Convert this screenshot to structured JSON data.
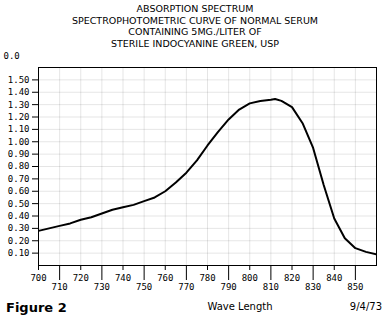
{
  "chart_data": {
    "type": "line",
    "title": "ABSORPTION SPECTRUM\nSPECTROPHOTOMETRIC CURVE OF NORMAL SERUM\nCONTAINING 5MG./LITER OF\nSTERILE INDOCYANINE GREEN, USP",
    "xlabel": "Wave Length",
    "ylabel": "0.0",
    "annotations": [
      "9/4/73",
      "Figure 2"
    ],
    "x": [
      700,
      705,
      710,
      715,
      720,
      725,
      730,
      735,
      740,
      745,
      750,
      755,
      760,
      765,
      770,
      775,
      780,
      785,
      790,
      795,
      800,
      805,
      810,
      812,
      815,
      820,
      825,
      830,
      835,
      840,
      845,
      850,
      855,
      860
    ],
    "values": [
      0.28,
      0.3,
      0.32,
      0.34,
      0.37,
      0.39,
      0.42,
      0.45,
      0.47,
      0.49,
      0.52,
      0.55,
      0.6,
      0.67,
      0.75,
      0.85,
      0.97,
      1.08,
      1.18,
      1.26,
      1.31,
      1.33,
      1.34,
      1.345,
      1.33,
      1.28,
      1.15,
      0.95,
      0.65,
      0.38,
      0.22,
      0.14,
      0.11,
      0.09
    ],
    "color": "#000000",
    "xlim": [
      700,
      860
    ],
    "xticks": [
      700,
      710,
      720,
      730,
      740,
      750,
      760,
      770,
      780,
      790,
      800,
      810,
      820,
      830,
      840,
      850
    ],
    "ylim": [
      0.0,
      1.6
    ],
    "yticks": [
      {
        "value": 0.1,
        "label": "0.10"
      },
      {
        "value": 0.2,
        "label": "0.20"
      },
      {
        "value": 0.3,
        "label": "0.30"
      },
      {
        "value": 0.4,
        "label": "0.40"
      },
      {
        "value": 0.5,
        "label": "0.50"
      },
      {
        "value": 0.6,
        "label": "0.60"
      },
      {
        "value": 0.7,
        "label": "0.70"
      },
      {
        "value": 0.8,
        "label": "0.80"
      },
      {
        "value": 0.9,
        "label": "0.90"
      },
      {
        "value": 1.0,
        "label": "1.00"
      },
      {
        "value": 1.1,
        "label": "1.10"
      },
      {
        "value": 1.2,
        "label": "1.20"
      },
      {
        "value": 1.3,
        "label": "1.30"
      },
      {
        "value": 1.4,
        "label": "1.40"
      },
      {
        "value": 1.5,
        "label": "1.50"
      }
    ],
    "grid": true
  }
}
